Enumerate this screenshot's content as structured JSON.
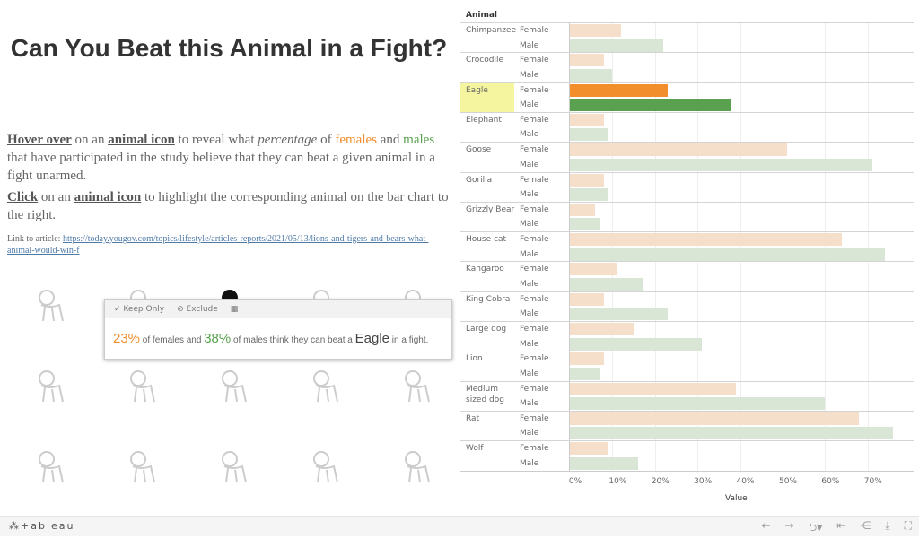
{
  "title": "Can You Beat this Animal in a Fight?",
  "instructions": {
    "p1": {
      "hover": "Hover over",
      "t1": " on an ",
      "icon": "animal icon",
      "t2": " to reveal what ",
      "pct": "percentage",
      "t3": " of ",
      "females": "females",
      "t4": " and ",
      "males": "males",
      "t5": " that have participated in the study believe that they can beat a given animal in a fight unarmed."
    },
    "p2": {
      "click": "Click",
      "t1": " on an ",
      "icon": "animal icon",
      "t2": " to highlight the corresponding animal on the bar chart to the right."
    },
    "link_label": "Link to article: ",
    "link_url": "https://today.yougov.com/topics/lifestyle/articles-reports/2021/05/13/lions-and-tigers-and-bears-what-animal-would-win-f"
  },
  "icons": [
    "chimpanzee",
    "kangaroo",
    "eagle",
    "crocodile",
    "king-cobra",
    "medium-dog",
    "dog",
    "rat",
    "lion",
    "wolf",
    "gorilla",
    "grizzly-bear",
    "house-cat",
    "kangaroo",
    "king-cobra"
  ],
  "tooltip": {
    "keep_only": "Keep Only",
    "exclude": "Exclude",
    "female_pct": "23%",
    "t1": " of females and ",
    "male_pct": "38%",
    "t2": " of males think they can beat a ",
    "animal": "Eagle",
    "t3": " in a fight."
  },
  "colors": {
    "female": "#f28e2b",
    "male": "#59a14f",
    "female_light": "#f5dfca",
    "male_light": "#d9e6d5",
    "highlight": "#f5f5a0"
  },
  "chart_data": {
    "type": "bar",
    "orientation": "horizontal",
    "header": "Animal",
    "xlabel": "Value",
    "xlim": [
      0,
      78
    ],
    "ticks": [
      "0%",
      "10%",
      "20%",
      "30%",
      "40%",
      "50%",
      "60%",
      "70%"
    ],
    "groups": [
      "Female",
      "Male"
    ],
    "highlighted": "Eagle",
    "animals": [
      {
        "name": "Chimpanzee",
        "female": 12,
        "male": 22
      },
      {
        "name": "Crocodile",
        "female": 8,
        "male": 10
      },
      {
        "name": "Eagle",
        "female": 23,
        "male": 38
      },
      {
        "name": "Elephant",
        "female": 8,
        "male": 9
      },
      {
        "name": "Goose",
        "female": 51,
        "male": 71
      },
      {
        "name": "Gorilla",
        "female": 8,
        "male": 9
      },
      {
        "name": "Grizzly Bear",
        "female": 6,
        "male": 7
      },
      {
        "name": "House cat",
        "female": 64,
        "male": 74
      },
      {
        "name": "Kangaroo",
        "female": 11,
        "male": 17
      },
      {
        "name": "King Cobra",
        "female": 8,
        "male": 23
      },
      {
        "name": "Large dog",
        "female": 15,
        "male": 31
      },
      {
        "name": "Lion",
        "female": 8,
        "male": 7
      },
      {
        "name": "Medium sized dog",
        "female": 39,
        "male": 60
      },
      {
        "name": "Rat",
        "female": 68,
        "male": 76
      },
      {
        "name": "Wolf",
        "female": 9,
        "male": 16
      }
    ]
  },
  "footer": {
    "brand": "+ableau"
  }
}
